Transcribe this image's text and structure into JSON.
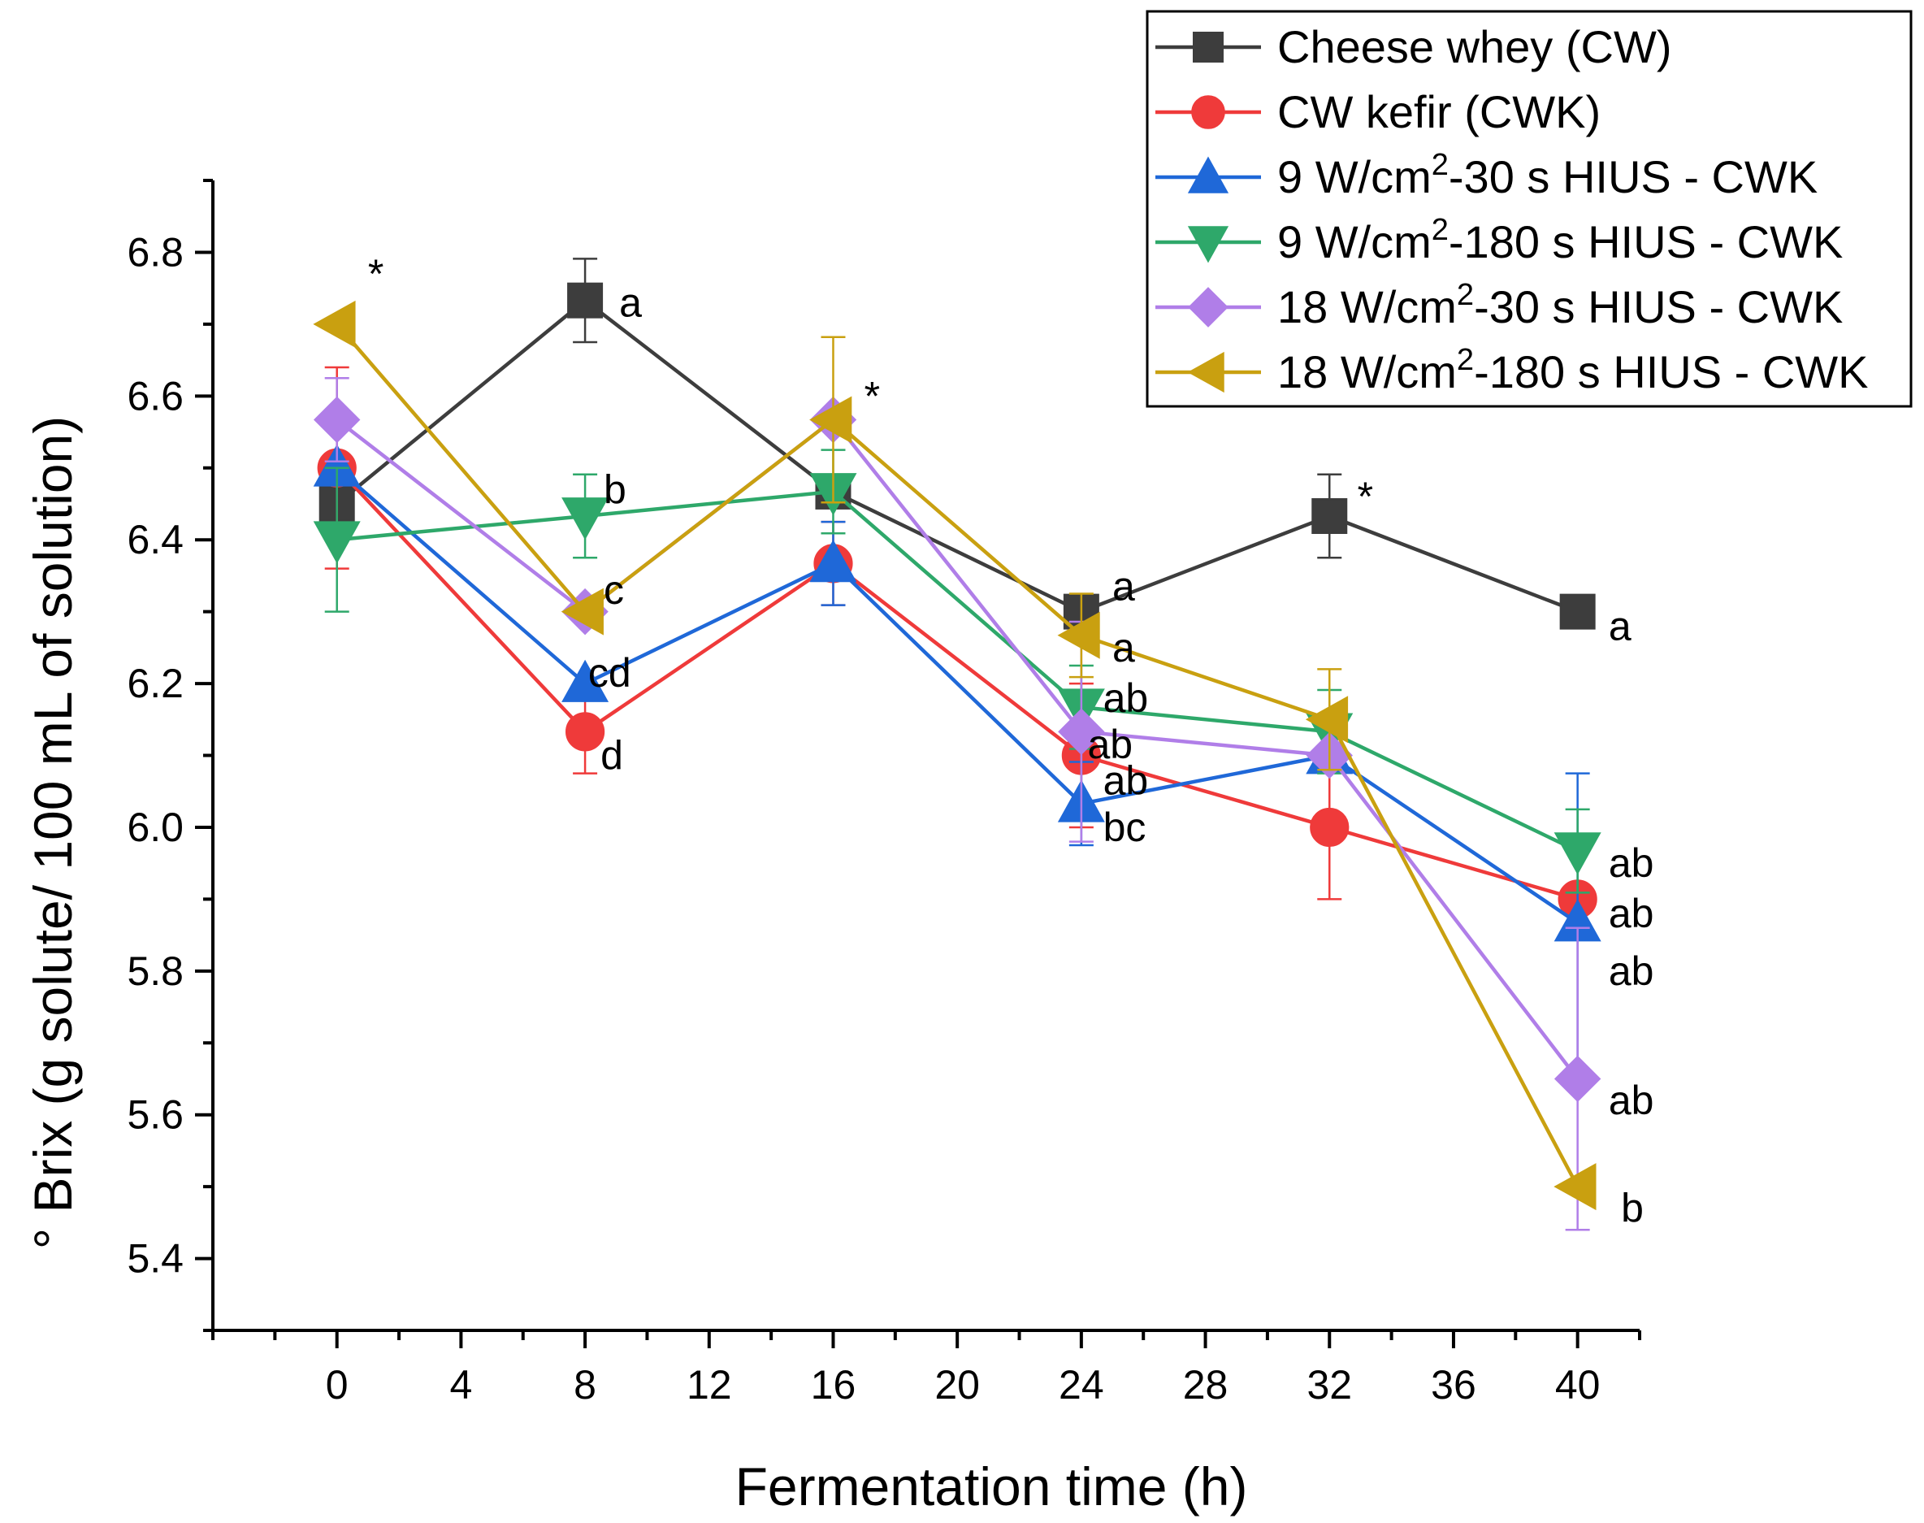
{
  "chart_data": {
    "type": "line",
    "xlabel": "Fermentation time (h)",
    "ylabel": "° Brix (g solute/ 100 mL of solution)",
    "xlim": [
      -4,
      42
    ],
    "ylim": [
      5.3,
      6.9
    ],
    "xticks": [
      0,
      4,
      8,
      12,
      16,
      20,
      24,
      28,
      32,
      36,
      40
    ],
    "yticks": [
      5.4,
      5.6,
      5.8,
      6.0,
      6.2,
      6.4,
      6.6,
      6.8
    ],
    "ytick_labels": [
      "5.4",
      "5.6",
      "5.8",
      "6.0",
      "6.2",
      "6.4",
      "6.6",
      "6.8"
    ],
    "legend_position": "top-right",
    "series": [
      {
        "id": "cw",
        "name": "Cheese whey (CW)",
        "name_parts": [
          "Cheese whey (CW)"
        ],
        "color": "#3d3d3d",
        "marker": "square",
        "x": [
          0,
          8,
          16,
          24,
          32,
          40
        ],
        "y": [
          6.45,
          6.733,
          6.467,
          6.3,
          6.433,
          6.3
        ],
        "err": [
          0,
          0.058,
          0,
          0,
          0.058,
          0
        ]
      },
      {
        "id": "cwk",
        "name": "CW kefir (CWK)",
        "name_parts": [
          "CW kefir (CWK)"
        ],
        "color": "#ef3a3a",
        "marker": "circle",
        "x": [
          0,
          8,
          16,
          24,
          32,
          40
        ],
        "y": [
          6.5,
          6.133,
          6.367,
          6.1,
          6.0,
          5.9
        ],
        "err": [
          0.14,
          0.058,
          0.058,
          0.1,
          0.1,
          0
        ]
      },
      {
        "id": "s9_30",
        "name": "9 W/cm2-30 s HIUS - CWK",
        "name_parts": [
          "9 W/cm",
          "2",
          "-30 s HIUS - CWK"
        ],
        "color": "#1f68d8",
        "marker": "triangle-up",
        "x": [
          0,
          8,
          16,
          24,
          32,
          40
        ],
        "y": [
          6.5,
          6.2,
          6.367,
          6.033,
          6.1,
          5.867
        ],
        "err": [
          0,
          0,
          0.058,
          0.058,
          0,
          0.208
        ]
      },
      {
        "id": "s9_180",
        "name": "9 W/cm2-180 s HIUS - CWK",
        "name_parts": [
          "9 W/cm",
          "2",
          "-180 s HIUS - CWK"
        ],
        "color": "#2ea86a",
        "marker": "triangle-down",
        "x": [
          0,
          8,
          16,
          24,
          32,
          40
        ],
        "y": [
          6.4,
          6.433,
          6.467,
          6.167,
          6.133,
          5.967
        ],
        "err": [
          0.1,
          0.058,
          0.058,
          0.058,
          0.058,
          0.058
        ]
      },
      {
        "id": "s18_30",
        "name": "18 W/cm2-30 s HIUS - CWK",
        "name_parts": [
          "18 W/cm",
          "2",
          "-30 s HIUS - CWK"
        ],
        "color": "#b07ee8",
        "marker": "diamond",
        "x": [
          0,
          8,
          16,
          24,
          32,
          40
        ],
        "y": [
          6.567,
          6.3,
          6.567,
          6.133,
          6.1,
          5.65
        ],
        "err": [
          0.058,
          0,
          0,
          0.153,
          0,
          0.21
        ]
      },
      {
        "id": "s18_180",
        "name": "18 W/cm2-180 s HIUS - CWK",
        "name_parts": [
          "18 W/cm",
          "2",
          "-180 s HIUS - CWK"
        ],
        "color": "#c9a010",
        "marker": "triangle-left",
        "x": [
          0,
          8,
          16,
          24,
          32,
          40
        ],
        "y": [
          6.7,
          6.3,
          6.567,
          6.267,
          6.15,
          5.5
        ],
        "err": [
          0,
          0,
          0.115,
          0.058,
          0.07,
          0
        ]
      }
    ],
    "annotations": [
      {
        "text": "*",
        "x": 1.0,
        "y": 6.77
      },
      {
        "text": "a",
        "x": 9.1,
        "y": 6.73
      },
      {
        "text": "b",
        "x": 8.6,
        "y": 6.47
      },
      {
        "text": "c",
        "x": 8.6,
        "y": 6.33
      },
      {
        "text": "cd",
        "x": 8.1,
        "y": 6.215
      },
      {
        "text": "d",
        "x": 8.5,
        "y": 6.1
      },
      {
        "text": "*",
        "x": 17.0,
        "y": 6.6
      },
      {
        "text": "a",
        "x": 25.0,
        "y": 6.335
      },
      {
        "text": "a",
        "x": 25.0,
        "y": 6.25
      },
      {
        "text": "ab",
        "x": 24.7,
        "y": 6.18
      },
      {
        "text": "ab",
        "x": 24.2,
        "y": 6.115
      },
      {
        "text": "ab",
        "x": 24.7,
        "y": 6.065
      },
      {
        "text": "bc",
        "x": 24.7,
        "y": 6.0
      },
      {
        "text": "*",
        "x": 32.9,
        "y": 6.46
      },
      {
        "text": "a",
        "x": 41.0,
        "y": 6.28
      },
      {
        "text": "ab",
        "x": 41.0,
        "y": 5.95
      },
      {
        "text": "ab",
        "x": 41.0,
        "y": 5.88
      },
      {
        "text": "ab",
        "x": 41.0,
        "y": 5.8
      },
      {
        "text": "ab",
        "x": 41.0,
        "y": 5.62
      },
      {
        "text": "b",
        "x": 41.4,
        "y": 5.47
      }
    ]
  }
}
